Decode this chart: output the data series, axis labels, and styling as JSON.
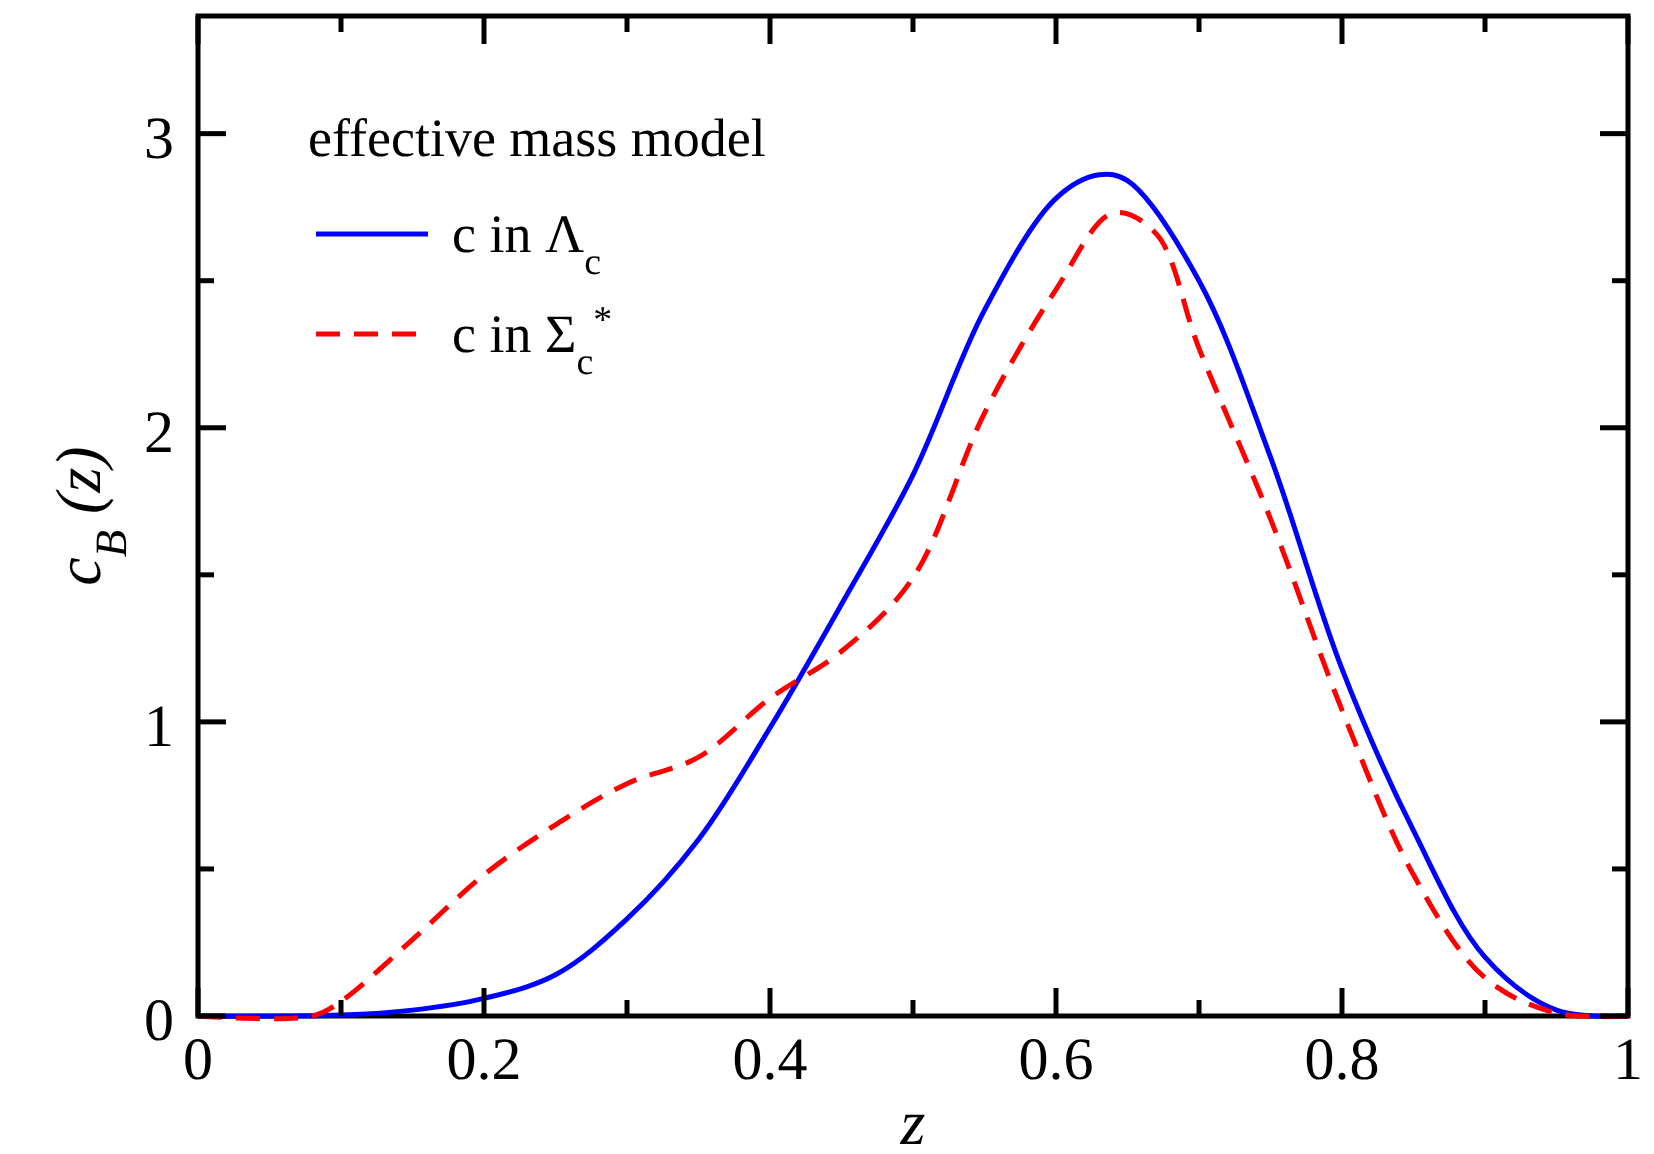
{
  "chart_data": {
    "type": "line",
    "xlabel": "z",
    "ylabel": "c$_{B}$ (z)",
    "legend_title": "effective mass model",
    "legend": "top left",
    "xlim": [
      0,
      1
    ],
    "ylim": [
      0,
      3.4
    ],
    "xticks": [
      0,
      {
        "value": 0.1,
        "label": null
      },
      0.2,
      {
        "value": 0.3,
        "label": null
      },
      0.4,
      {
        "value": 0.5,
        "label": null
      },
      0.6,
      {
        "value": 0.7,
        "label": null
      },
      0.8,
      {
        "value": 0.9,
        "label": null
      },
      1
    ],
    "yticks": [
      0,
      {
        "value": 0.5,
        "label": null
      },
      1,
      {
        "value": 1.5,
        "label": null
      },
      2,
      {
        "value": 2.5,
        "label": null
      },
      3
    ],
    "grid": false,
    "marker": "none",
    "series": [
      {
        "name": "c  in  Λ$_{c}$",
        "color": "#0000ff",
        "line_style": "solid",
        "x": [
          0,
          0.1,
          0.15,
          0.2,
          0.25,
          0.3,
          0.35,
          0.4,
          0.45,
          0.5,
          0.55,
          0.6,
          0.63,
          0.65,
          0.7,
          0.75,
          0.8,
          0.85,
          0.9,
          0.95,
          1
        ],
        "values": [
          0,
          0.003,
          0.02,
          0.06,
          0.14,
          0.33,
          0.6,
          0.98,
          1.4,
          1.84,
          2.4,
          2.78,
          2.86,
          2.84,
          2.5,
          1.9,
          1.18,
          0.63,
          0.2,
          0.02,
          0
        ]
      },
      {
        "name": "c  in  Σ$_{c}$$^{*}$",
        "color": "#ff0000",
        "line_style": "dashed",
        "x": [
          0,
          0.08,
          0.1,
          0.15,
          0.2,
          0.25,
          0.3,
          0.35,
          0.4,
          0.45,
          0.5,
          0.55,
          0.6,
          0.64,
          0.67,
          0.7,
          0.75,
          0.8,
          0.85,
          0.9,
          0.95,
          1
        ],
        "values": [
          0,
          0,
          0.05,
          0.26,
          0.48,
          0.65,
          0.79,
          0.88,
          1.08,
          1.24,
          1.49,
          2.05,
          2.47,
          2.73,
          2.66,
          2.27,
          1.69,
          1.04,
          0.48,
          0.13,
          0.01,
          0
        ]
      }
    ]
  }
}
